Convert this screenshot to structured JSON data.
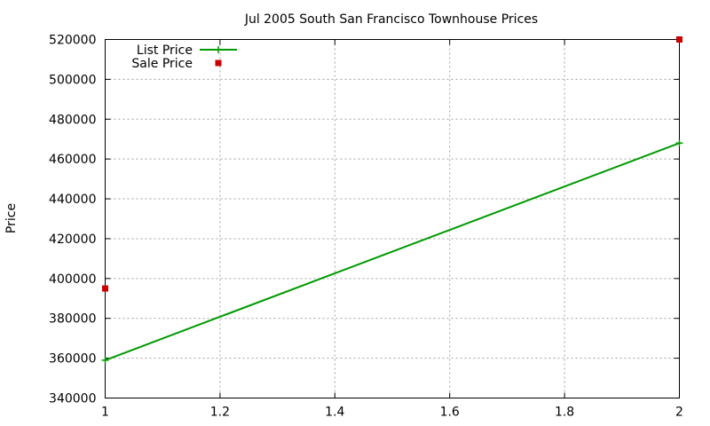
{
  "chart_data": {
    "type": "line",
    "title": "Jul 2005 South San Francisco Townhouse Prices",
    "xlabel": "",
    "ylabel": "Price",
    "xlim": [
      1,
      2
    ],
    "ylim": [
      340000,
      520000
    ],
    "x_ticks": [
      1,
      1.2,
      1.4,
      1.6,
      1.8,
      2
    ],
    "x_tick_labels": [
      "1",
      "1.2",
      "1.4",
      "1.6",
      "1.8",
      "2"
    ],
    "y_ticks": [
      340000,
      360000,
      380000,
      400000,
      420000,
      440000,
      460000,
      480000,
      500000,
      520000
    ],
    "y_tick_labels": [
      "340000",
      "360000",
      "380000",
      "400000",
      "420000",
      "440000",
      "460000",
      "480000",
      "500000",
      "520000"
    ],
    "grid": true,
    "legend_position": "top-left",
    "series": [
      {
        "name": "List Price",
        "style": "line+markers",
        "marker": "plus",
        "color": "#009900",
        "points": [
          {
            "x": 1,
            "y": 359000
          },
          {
            "x": 2,
            "y": 468000
          }
        ]
      },
      {
        "name": "Sale Price",
        "style": "points",
        "marker": "square",
        "color": "#cc0000",
        "points": [
          {
            "x": 1,
            "y": 395000
          },
          {
            "x": 2,
            "y": 520000
          }
        ]
      }
    ]
  }
}
